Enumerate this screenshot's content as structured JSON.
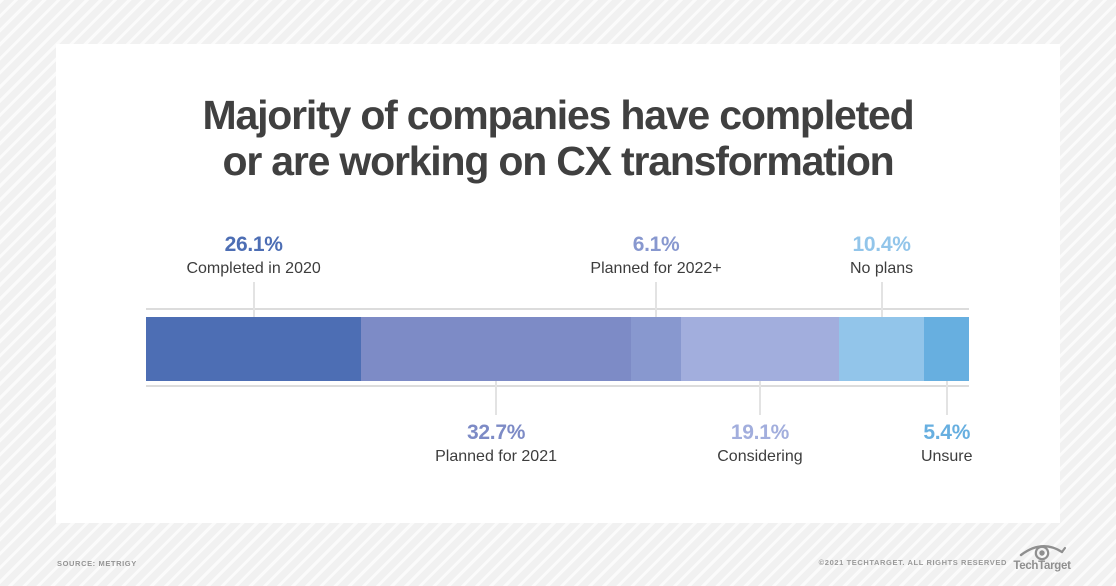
{
  "title": {
    "line1": "Majority of companies have completed",
    "line2": "or are working on CX transformation"
  },
  "chart_data": {
    "type": "bar",
    "subtype": "stacked-horizontal-100percent",
    "title": "Majority of companies have completed or are working on CX transformation",
    "orientation": "horizontal",
    "axis_visible": false,
    "segments": [
      {
        "label": "Completed in 2020",
        "display": "26.1%",
        "value": 26.1,
        "color": "#4d6eb4",
        "label_position": "above"
      },
      {
        "label": "Planned for 2021",
        "display": "32.7%",
        "value": 32.7,
        "color": "#7d8bc6",
        "label_position": "below"
      },
      {
        "label": "Planned for 2022+",
        "display": "6.1%",
        "value": 6.1,
        "color": "#8898cf",
        "label_position": "above"
      },
      {
        "label": "Considering",
        "display": "19.1%",
        "value": 19.1,
        "color": "#a2aedd",
        "label_position": "below"
      },
      {
        "label": "No plans",
        "display": "10.4%",
        "value": 10.4,
        "color": "#92c5ea",
        "label_position": "above"
      },
      {
        "label": "Unsure",
        "display": "5.4%",
        "value": 5.4,
        "color": "#67afe0",
        "label_position": "below"
      }
    ]
  },
  "footer": {
    "source": "SOURCE: METRIGY",
    "copyright": "©2021 TECHTARGET. ALL RIGHTS RESERVED",
    "logo_text": "TechTarget"
  },
  "colors": {
    "title_text": "#404040",
    "category_text": "#3d3d3d",
    "gridline": "#dcdcdc",
    "connector": "#e3e3e3",
    "card_background": "#ffffff",
    "page_background": "#f1f1f1",
    "footer_text": "#949494"
  }
}
